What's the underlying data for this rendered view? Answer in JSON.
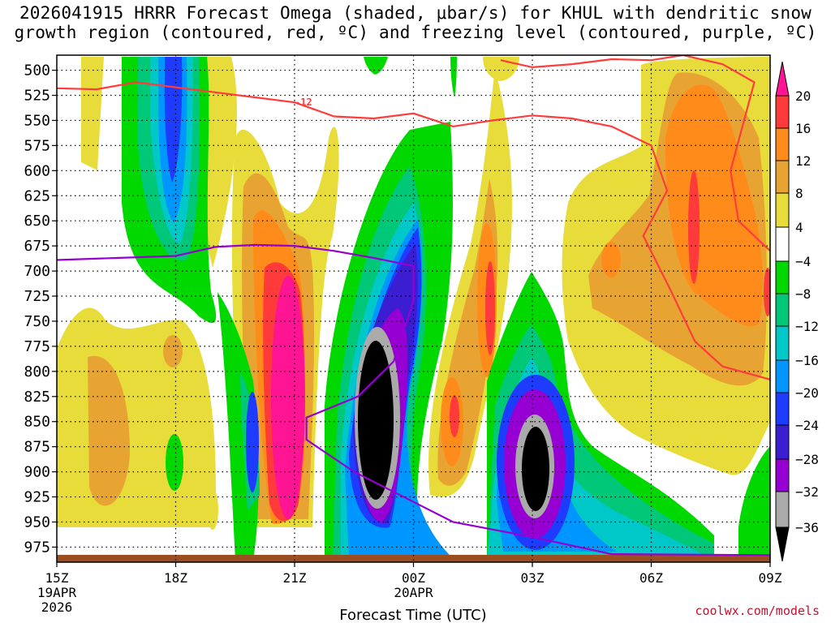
{
  "chart_data": {
    "type": "heatmap",
    "title_line1": "2026041915 HRRR Forecast Omega (shaded, μbar/s) for KHUL with dendritic snow",
    "title_line2": "growth region (contoured, red, ºC) and freezing level (contoured, purple, ºC)",
    "xlabel": "Forecast Time (UTC)",
    "x_ticks": [
      {
        "hour": 0,
        "label": "15Z",
        "sub1": "19APR",
        "sub2": "2026"
      },
      {
        "hour": 3,
        "label": "18Z",
        "sub1": "",
        "sub2": ""
      },
      {
        "hour": 6,
        "label": "21Z",
        "sub1": "",
        "sub2": ""
      },
      {
        "hour": 9,
        "label": "00Z",
        "sub1": "20APR",
        "sub2": ""
      },
      {
        "hour": 12,
        "label": "03Z",
        "sub1": "",
        "sub2": ""
      },
      {
        "hour": 15,
        "label": "06Z",
        "sub1": "",
        "sub2": ""
      },
      {
        "hour": 18,
        "label": "09Z",
        "sub1": "",
        "sub2": ""
      }
    ],
    "y_ticks": [
      "500",
      "525",
      "550",
      "575",
      "600",
      "625",
      "650",
      "675",
      "700",
      "725",
      "750",
      "775",
      "800",
      "825",
      "850",
      "875",
      "900",
      "925",
      "950",
      "975"
    ],
    "ylim": [
      990,
      485
    ],
    "colorbar": {
      "labels": [
        "20",
        "16",
        "12",
        "8",
        "4",
        "−4",
        "−8",
        "−12",
        "−16",
        "−20",
        "−24",
        "−28",
        "−32",
        "−36"
      ],
      "colors": {
        "c20": "#ff1493",
        "c16": "#ff3a3a",
        "c12": "#ff8c1a",
        "c8": "#e8a433",
        "c4": "#e8dc3a",
        "w": "#ffffff",
        "g8": "#00d800",
        "g12": "#00c878",
        "c16b": "#00c8c8",
        "b20": "#0096ff",
        "b24": "#1e3cff",
        "p28": "#3c1ed2",
        "p32": "#9600d2",
        "gray": "#aaaaaa",
        "black": "#000000"
      }
    },
    "dendritic_contour": {
      "label": "-12",
      "color": "#ff3c3c",
      "points": [
        [
          0,
          518
        ],
        [
          1,
          519
        ],
        [
          2,
          512
        ],
        [
          3,
          517
        ],
        [
          4,
          522
        ],
        [
          5,
          527
        ],
        [
          6,
          532
        ],
        [
          7,
          546
        ],
        [
          8,
          548
        ],
        [
          9,
          543
        ],
        [
          10,
          556
        ],
        [
          11,
          550
        ],
        [
          12,
          545
        ],
        [
          13,
          548
        ],
        [
          14,
          556
        ],
        [
          15,
          575
        ],
        [
          15.4,
          620
        ],
        [
          14.8,
          665
        ],
        [
          15.5,
          720
        ],
        [
          16.1,
          770
        ],
        [
          16.8,
          795
        ],
        [
          18,
          808
        ]
      ]
    },
    "dendritic_contour_upper": {
      "color": "#ff3c3c",
      "points": [
        [
          11.2,
          490
        ],
        [
          12,
          497
        ],
        [
          13,
          494
        ],
        [
          14,
          489
        ],
        [
          15,
          490
        ],
        [
          15.8,
          485
        ],
        [
          16.8,
          494
        ],
        [
          17.6,
          512
        ],
        [
          17.0,
          600
        ],
        [
          17.2,
          650
        ],
        [
          18,
          680
        ]
      ]
    },
    "freezing_level": {
      "color": "#9600d2",
      "points": [
        [
          0,
          689
        ],
        [
          1.5,
          687
        ],
        [
          3,
          685
        ],
        [
          4,
          676
        ],
        [
          5,
          674
        ],
        [
          6,
          675
        ],
        [
          7,
          680
        ],
        [
          8,
          687
        ],
        [
          9,
          695
        ],
        [
          9,
          730
        ],
        [
          8.5,
          790
        ],
        [
          7.6,
          825
        ],
        [
          6.3,
          846
        ],
        [
          6.3,
          868
        ],
        [
          7.5,
          900
        ],
        [
          9,
          930
        ],
        [
          10,
          950
        ],
        [
          12,
          965
        ],
        [
          14,
          982
        ],
        [
          18,
          983
        ]
      ]
    }
  },
  "credit": "coolwx.com/models"
}
